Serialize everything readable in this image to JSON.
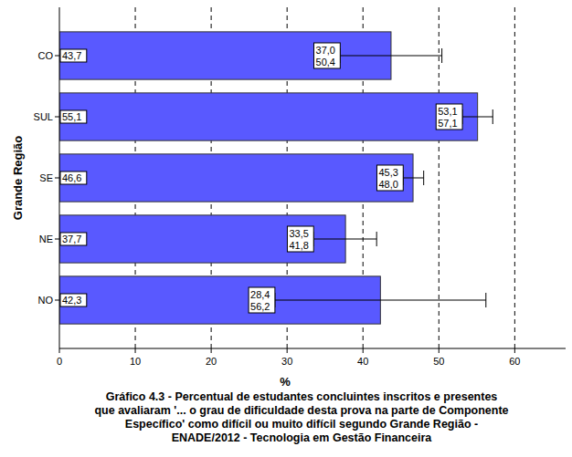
{
  "chart_data": {
    "type": "bar",
    "orientation": "horizontal",
    "title": "Gráfico 4.3 - Percentual de estudantes concluintes inscritos e presentes\nque avaliaram '... o grau de dificuldade desta prova na parte de Componente\nEspecífico' como difícil ou muito difícil segundo Grande Região -\nENADE/2012 - Tecnologia em Gestão Financeira",
    "x_label": "%",
    "y_label": "Grande Região",
    "categories": [
      "CO",
      "SUL",
      "SE",
      "NE",
      "NO"
    ],
    "values": [
      43.7,
      55.1,
      46.6,
      37.7,
      42.3
    ],
    "value_labels": [
      "43,7",
      "55,1",
      "46,6",
      "37,7",
      "42,3"
    ],
    "error_low": [
      37.0,
      53.1,
      45.3,
      33.5,
      28.4
    ],
    "error_low_labels": [
      "37,0",
      "53,1",
      "45,3",
      "33,5",
      "28,4"
    ],
    "error_high": [
      50.4,
      57.1,
      48.0,
      41.8,
      56.2
    ],
    "error_high_labels": [
      "50,4",
      "57,1",
      "48,0",
      "41,8",
      "56,2"
    ],
    "color": "#5959ff",
    "xlim": [
      0,
      66.7
    ],
    "xticks": [
      0,
      10,
      20,
      30,
      40,
      50,
      60
    ],
    "grid": true,
    "data_labels": true
  }
}
